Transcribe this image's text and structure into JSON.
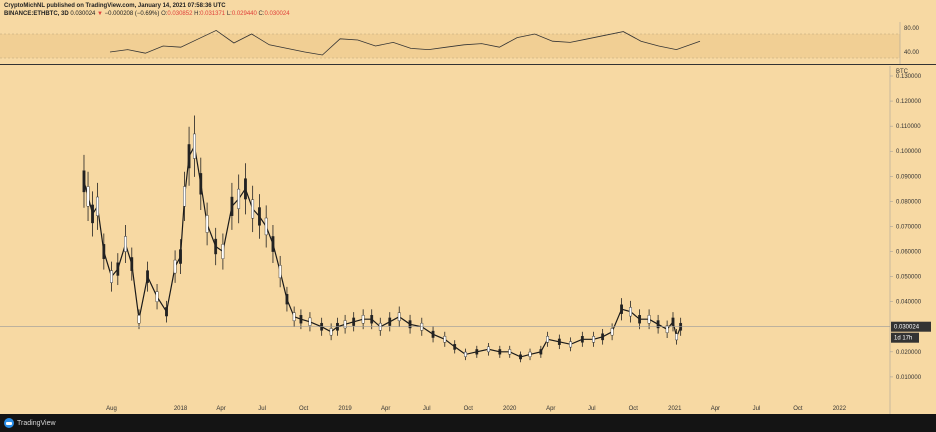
{
  "header": {
    "line1": "CryptoMichNL published on TradingView.com, January 14, 2021 07:58:36 UTC",
    "symbol": "BINANCE:ETHBTC, 3D",
    "last": "0.030024",
    "change_arrow": "▼",
    "change": "−0.000208 (−0.69%)",
    "o_label": "O:",
    "o_val": "0.030852",
    "h_label": "H:",
    "h_val": "0.031371",
    "l_label": "L:",
    "l_val": "0.029440",
    "c_label": "C:",
    "c_val": "0.030024"
  },
  "footer": {
    "logo_text": "TradingView"
  },
  "colors": {
    "background": "#f7d9a3",
    "price_label_bg": "#333333",
    "last_price_line": "#9a9a9a",
    "rsi_band": "#eecb8d"
  },
  "chart_data": [
    {
      "type": "line",
      "title": "",
      "xlabel": "",
      "ylabel": "",
      "ylim": [
        20,
        90
      ],
      "y_ticks": [
        "80.00",
        "40.00"
      ],
      "band": [
        30,
        70
      ],
      "x": [
        0,
        0.03,
        0.06,
        0.09,
        0.12,
        0.15,
        0.18,
        0.21,
        0.24,
        0.27,
        0.3,
        0.33,
        0.36,
        0.39,
        0.42,
        0.45,
        0.48,
        0.51,
        0.54,
        0.57,
        0.6,
        0.63,
        0.66,
        0.69,
        0.72,
        0.75,
        0.78,
        0.81,
        0.84,
        0.87,
        0.9,
        0.93,
        0.96,
        1.0
      ],
      "values": [
        40,
        44,
        38,
        50,
        48,
        62,
        76,
        55,
        70,
        52,
        46,
        40,
        35,
        62,
        60,
        50,
        56,
        46,
        44,
        48,
        52,
        54,
        48,
        64,
        70,
        58,
        56,
        62,
        68,
        74,
        58,
        50,
        44,
        58
      ]
    },
    {
      "type": "line",
      "title": "",
      "xlabel": "",
      "ylabel": "BTC",
      "ylim": [
        0.0,
        0.13
      ],
      "y_ticks": [
        "0.130000",
        "0.120000",
        "0.110000",
        "0.100000",
        "0.090000",
        "0.080000",
        "0.070000",
        "0.060000",
        "0.050000",
        "0.040000",
        "0.020000",
        "0.010000"
      ],
      "x_ticks": [
        "Aug",
        "2018",
        "Apr",
        "Jul",
        "Oct",
        "2019",
        "Apr",
        "Jul",
        "Oct",
        "2020",
        "Apr",
        "Jul",
        "Oct",
        "2021",
        "Apr",
        "Jul",
        "Oct",
        "2022"
      ],
      "last_value_label": "0.030024",
      "countdown_label": "1d 17h",
      "series": [
        {
          "x": [
            "2017-06-01",
            "2017-06-10",
            "2017-06-20",
            "2017-07-01",
            "2017-07-15",
            "2017-08-01",
            "2017-08-15",
            "2017-09-01",
            "2017-09-15",
            "2017-10-01",
            "2017-10-20",
            "2017-11-10",
            "2017-12-01",
            "2017-12-20",
            "2018-01-01",
            "2018-01-10",
            "2018-01-20",
            "2018-02-01",
            "2018-02-15",
            "2018-03-01",
            "2018-03-20",
            "2018-04-05",
            "2018-04-25",
            "2018-05-10",
            "2018-05-25",
            "2018-06-10",
            "2018-06-25",
            "2018-07-10",
            "2018-07-25",
            "2018-08-10",
            "2018-08-25",
            "2018-09-10",
            "2018-09-25",
            "2018-10-15",
            "2018-11-10",
            "2018-12-01",
            "2018-12-15",
            "2019-01-01",
            "2019-01-20",
            "2019-02-10",
            "2019-03-01",
            "2019-03-20",
            "2019-04-10",
            "2019-05-01",
            "2019-05-25",
            "2019-06-20",
            "2019-07-15",
            "2019-08-10",
            "2019-09-01",
            "2019-09-25",
            "2019-10-20",
            "2019-11-15",
            "2019-12-10",
            "2020-01-01",
            "2020-01-25",
            "2020-02-15",
            "2020-03-10",
            "2020-03-25",
            "2020-04-20",
            "2020-05-15",
            "2020-06-10",
            "2020-07-05",
            "2020-07-25",
            "2020-08-15",
            "2020-09-05",
            "2020-09-25",
            "2020-10-15",
            "2020-11-05",
            "2020-11-25",
            "2020-12-15",
            "2020-12-28",
            "2021-01-05",
            "2021-01-14"
          ],
          "values": [
            0.088,
            0.082,
            0.075,
            0.078,
            0.06,
            0.05,
            0.053,
            0.063,
            0.055,
            0.033,
            0.05,
            0.042,
            0.036,
            0.054,
            0.058,
            0.082,
            0.098,
            0.102,
            0.087,
            0.071,
            0.062,
            0.06,
            0.078,
            0.081,
            0.085,
            0.077,
            0.074,
            0.07,
            0.063,
            0.052,
            0.041,
            0.034,
            0.033,
            0.032,
            0.03,
            0.028,
            0.03,
            0.031,
            0.032,
            0.033,
            0.033,
            0.03,
            0.032,
            0.034,
            0.031,
            0.03,
            0.027,
            0.025,
            0.022,
            0.019,
            0.02,
            0.021,
            0.02,
            0.02,
            0.018,
            0.019,
            0.02,
            0.025,
            0.024,
            0.023,
            0.025,
            0.025,
            0.026,
            0.028,
            0.037,
            0.036,
            0.033,
            0.033,
            0.031,
            0.029,
            0.032,
            0.026,
            0.03
          ]
        }
      ]
    }
  ]
}
